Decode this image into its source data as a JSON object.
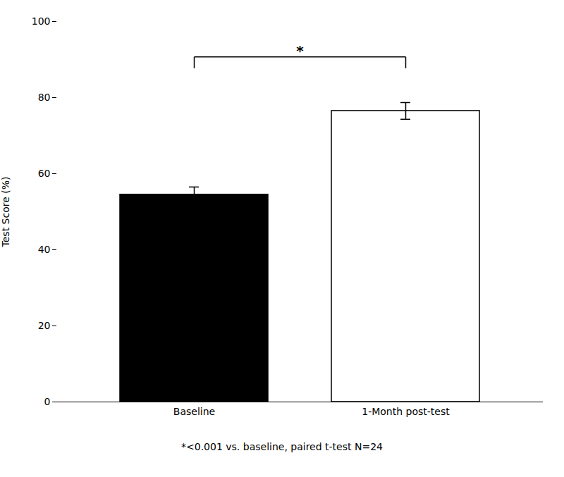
{
  "chart_data": {
    "type": "bar",
    "categories": [
      "Baseline",
      "1-Month post-test"
    ],
    "values": [
      54.5,
      76.5
    ],
    "errors": [
      2.0,
      2.2
    ],
    "colors": [
      "#000000",
      "#ffffff"
    ],
    "ylabel": "Test Score (%)",
    "ylim": [
      0,
      100
    ],
    "yticks": [
      0,
      20,
      40,
      60,
      80,
      100
    ],
    "annotation": "*",
    "caption": "*<0.001 vs. baseline, paired t-test N=24"
  }
}
